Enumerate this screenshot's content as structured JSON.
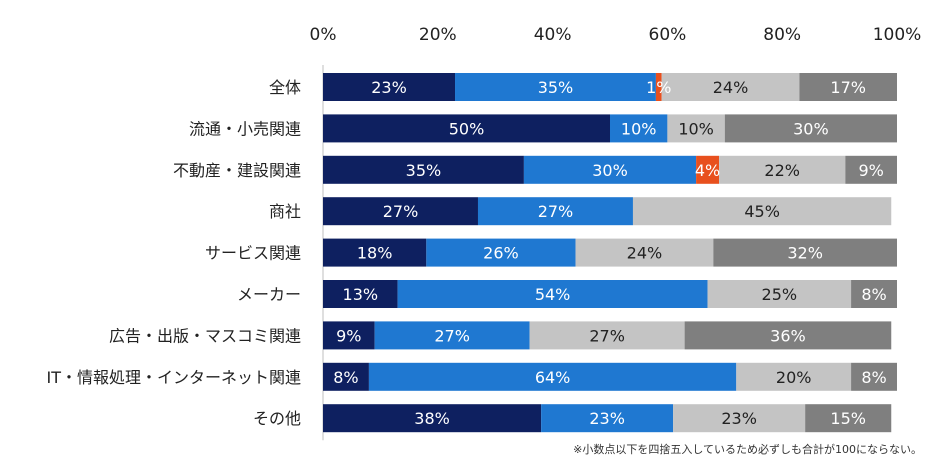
{
  "chart_data": {
    "type": "bar",
    "orientation": "horizontal",
    "stacked": true,
    "xlim": [
      0,
      100
    ],
    "x_ticks": [
      "0%",
      "20%",
      "40%",
      "60%",
      "80%",
      "100%"
    ],
    "categories": [
      "全体",
      "流通・小売関連",
      "不動産・建設関連",
      "商社",
      "サービス関連",
      "メーカー",
      "広告・出版・マスコミ関連",
      "IT・情報処理・インターネット関連",
      "その他"
    ],
    "series": [
      {
        "values": [
          23,
          50,
          35,
          27,
          18,
          13,
          9,
          8,
          38
        ],
        "labels": [
          "23%",
          "50%",
          "35%",
          "27%",
          "18%",
          "13%",
          "9%",
          "8%",
          "38%"
        ],
        "color": "#0e2060",
        "label_color": "#ffffff"
      },
      {
        "values": [
          35,
          10,
          30,
          27,
          26,
          54,
          27,
          64,
          23
        ],
        "labels": [
          "35%",
          "10%",
          "30%",
          "27%",
          "26%",
          "54%",
          "27%",
          "64%",
          "23%"
        ],
        "color": "#1f78d1",
        "label_color": "#ffffff"
      },
      {
        "values": [
          1,
          0,
          4,
          0,
          0,
          0,
          0,
          0,
          0
        ],
        "labels": [
          "1%",
          "",
          "4%",
          "",
          "",
          "",
          "",
          "",
          ""
        ],
        "color": "#e8501e",
        "label_color": "#ffffff"
      },
      {
        "values": [
          24,
          10,
          22,
          45,
          24,
          25,
          27,
          20,
          23
        ],
        "labels": [
          "24%",
          "10%",
          "22%",
          "45%",
          "24%",
          "25%",
          "27%",
          "20%",
          "23%"
        ],
        "color": "#c4c4c4",
        "label_color": "#222222"
      },
      {
        "values": [
          17,
          30,
          9,
          0,
          32,
          8,
          36,
          8,
          15
        ],
        "labels": [
          "17%",
          "30%",
          "9%",
          "",
          "32%",
          "8%",
          "36%",
          "8%",
          "15%"
        ],
        "color": "#7f7f7f",
        "label_color": "#ffffff"
      }
    ],
    "grid": false,
    "legend": "none"
  },
  "footnote": "※小数点以下を四捨五入しているため必ずしも合計が100にならない。"
}
